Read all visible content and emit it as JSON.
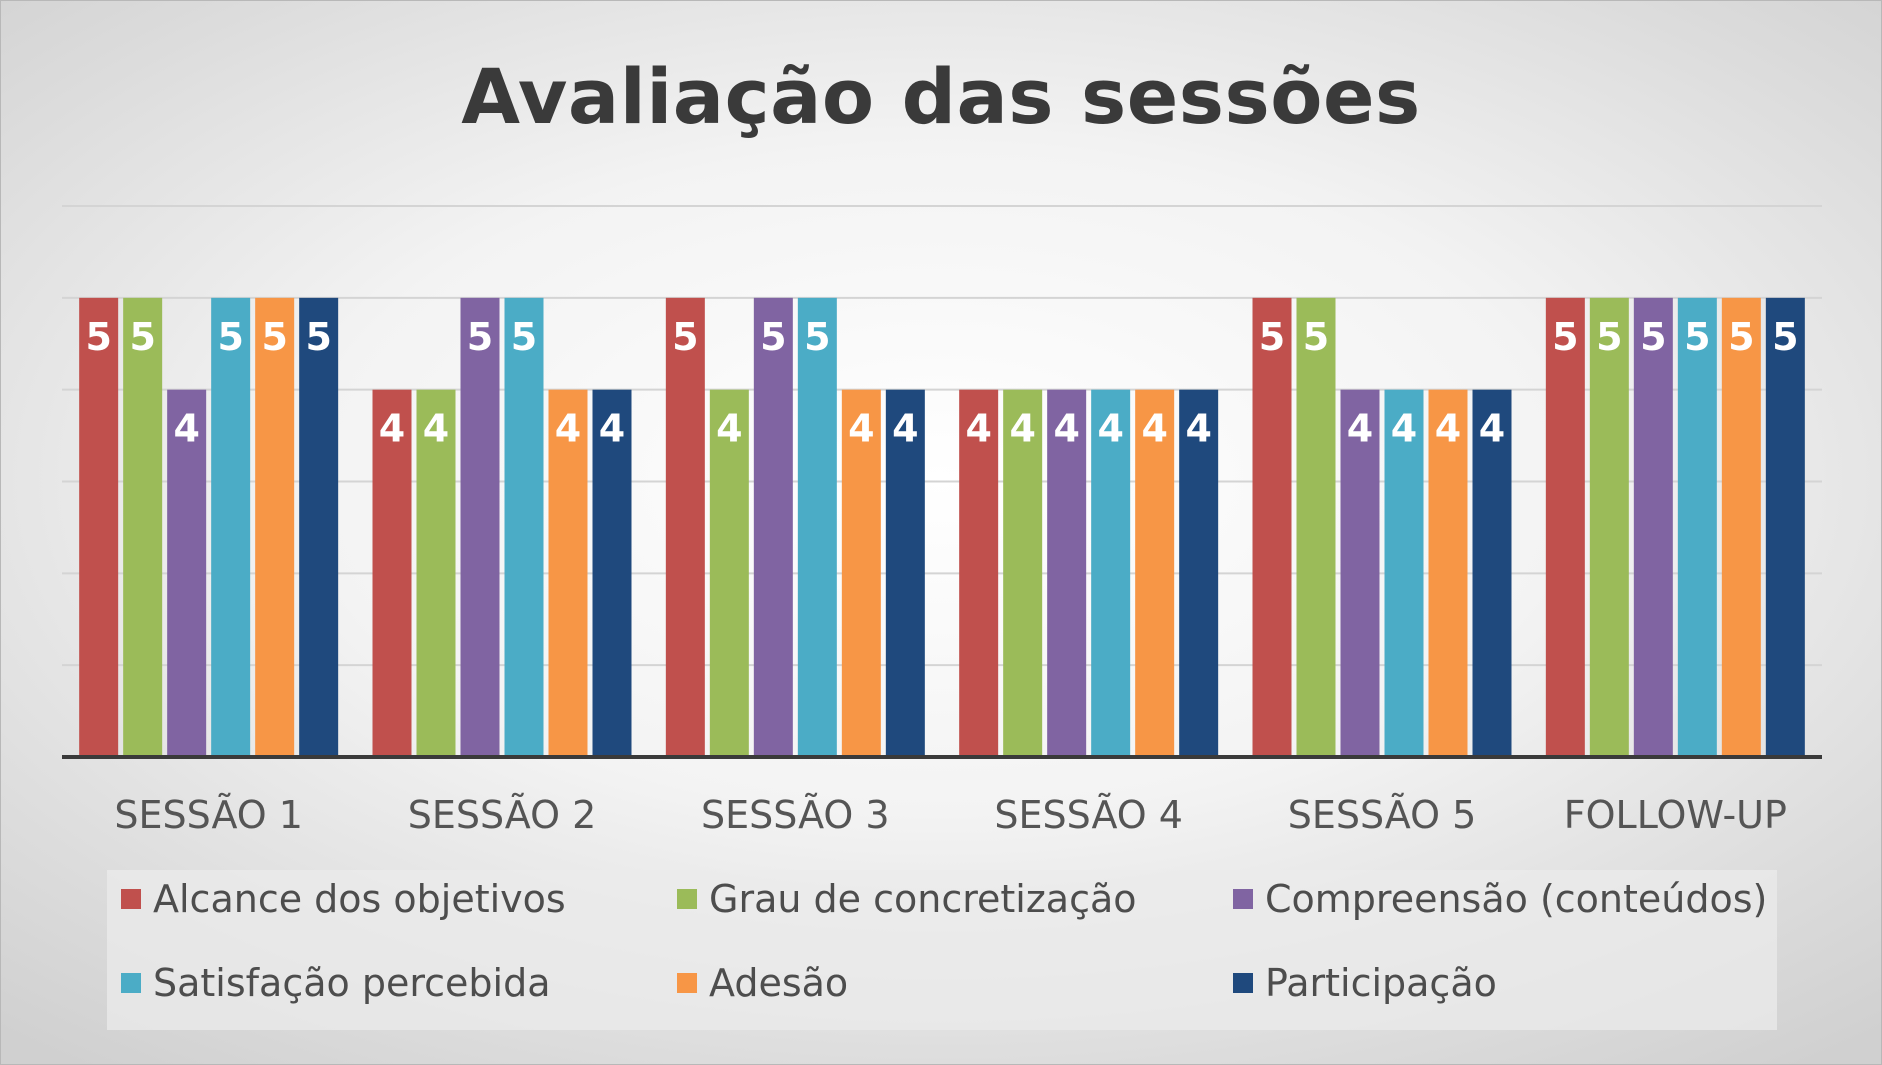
{
  "chart_data": {
    "type": "bar",
    "title": "Avaliação das sessões",
    "categories": [
      "SESSÃO 1",
      "SESSÃO 2",
      "SESSÃO 3",
      "SESSÃO 4",
      "SESSÃO 5",
      "FOLLOW-UP"
    ],
    "series": [
      {
        "name": "Alcance dos objetivos",
        "color": "#c0504d",
        "values": [
          5,
          4,
          5,
          4,
          5,
          5
        ]
      },
      {
        "name": "Grau de concretização",
        "color": "#9bbb59",
        "values": [
          5,
          4,
          4,
          4,
          5,
          5
        ]
      },
      {
        "name": "Compreensão (conteúdos)",
        "color": "#8064a2",
        "values": [
          4,
          5,
          5,
          4,
          4,
          5
        ]
      },
      {
        "name": "Satisfação percebida",
        "color": "#4bacc6",
        "values": [
          5,
          5,
          5,
          4,
          4,
          5
        ]
      },
      {
        "name": "Adesão",
        "color": "#f79646",
        "values": [
          5,
          4,
          4,
          4,
          4,
          5
        ]
      },
      {
        "name": "Participação",
        "color": "#1f497d",
        "values": [
          5,
          4,
          4,
          4,
          4,
          5
        ]
      }
    ],
    "ylim": [
      0,
      6
    ],
    "grid": true,
    "data_labels": true,
    "legend_position": "bottom"
  }
}
